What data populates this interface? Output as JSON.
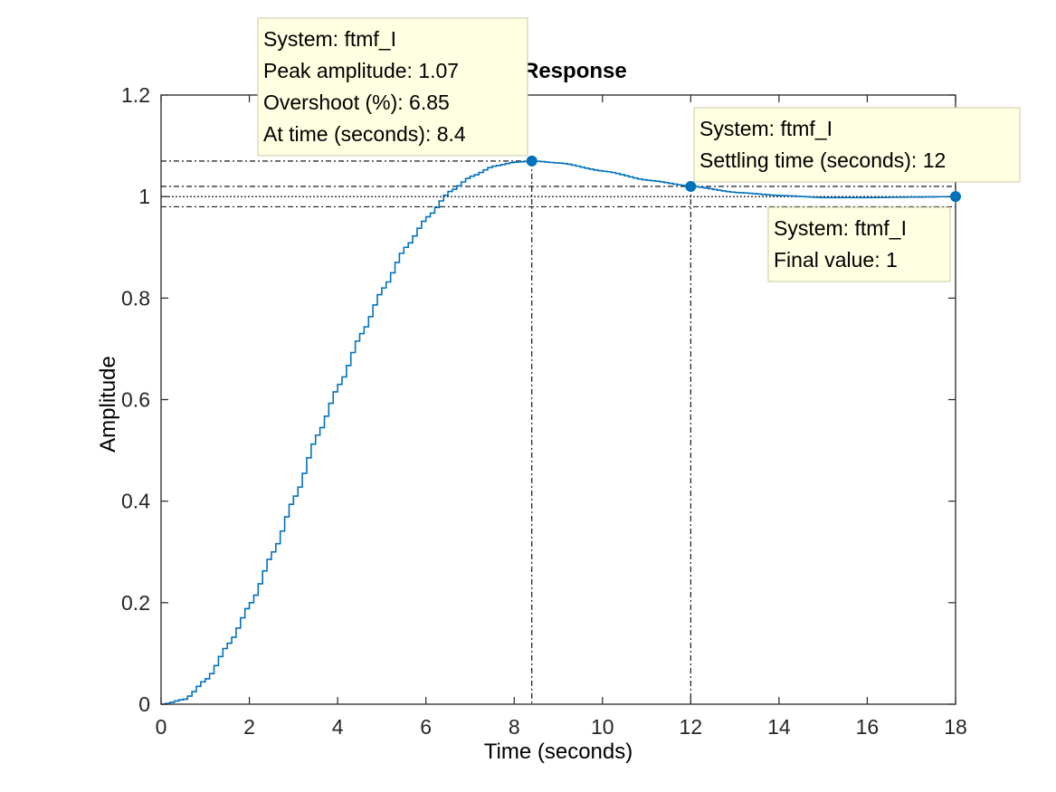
{
  "colors": {
    "series": "#0072bd",
    "axes": "#262626",
    "tooltip_bg": "#ffffe1",
    "tooltip_border": "#c9c9a6",
    "marker_line": "#000000"
  },
  "chart_data": {
    "type": "line",
    "title": "Response",
    "xlabel": "Time (seconds)",
    "ylabel": "Amplitude",
    "xlim": [
      0,
      18
    ],
    "ylim": [
      0,
      1.2
    ],
    "xticks": [
      0,
      2,
      4,
      6,
      8,
      10,
      12,
      14,
      16,
      18
    ],
    "yticks": [
      0,
      0.2,
      0.4,
      0.6,
      0.8,
      1,
      1.2
    ],
    "xtick_labels": [
      "0",
      "2",
      "4",
      "6",
      "8",
      "10",
      "12",
      "14",
      "16",
      "18"
    ],
    "ytick_labels": [
      "0",
      "0.2",
      "0.4",
      "0.6",
      "0.8",
      "1",
      "1.2"
    ],
    "grid": false,
    "series": [
      {
        "name": "ftmf_I",
        "style": "stairs",
        "x": [
          0,
          0.5,
          1,
          1.5,
          2,
          2.5,
          3,
          3.5,
          4,
          4.5,
          5,
          5.5,
          6,
          6.5,
          7,
          7.5,
          8,
          8.4,
          9,
          10,
          11,
          12,
          13,
          14,
          15,
          16,
          17,
          18
        ],
        "y": [
          0,
          0.01,
          0.05,
          0.12,
          0.2,
          0.3,
          0.41,
          0.53,
          0.63,
          0.73,
          0.82,
          0.9,
          0.96,
          1.01,
          1.04,
          1.06,
          1.068,
          1.07,
          1.066,
          1.05,
          1.032,
          1.02,
          1.008,
          1.002,
          0.998,
          0.998,
          0.999,
          1.0
        ]
      }
    ],
    "reference_lines": {
      "final_value": 1.0,
      "settling_band": [
        0.98,
        1.02
      ],
      "peak_amplitude": 1.07,
      "peak_time": 8.4,
      "settling_time": 12
    },
    "markers": [
      {
        "name": "peak",
        "x": 8.4,
        "y": 1.07
      },
      {
        "name": "settling",
        "x": 12,
        "y": 1.02
      },
      {
        "name": "final",
        "x": 18,
        "y": 1.0
      }
    ],
    "annotations": [
      {
        "name": "peak-tooltip",
        "lines": [
          "System: ftmf_I",
          "Peak amplitude: 1.07",
          "Overshoot (%): 6.85",
          "At time (seconds): 8.4"
        ]
      },
      {
        "name": "settling-tooltip",
        "lines": [
          "System: ftmf_I",
          "Settling time (seconds): 12"
        ]
      },
      {
        "name": "final-tooltip",
        "lines": [
          "System: ftmf_I",
          "Final value: 1"
        ]
      }
    ]
  }
}
